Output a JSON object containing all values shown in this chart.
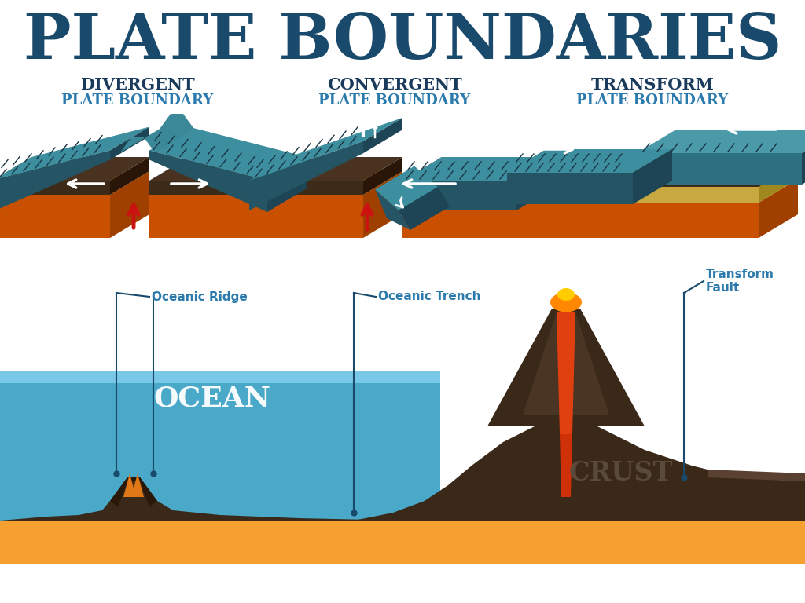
{
  "title": "PLATE BOUNDARIES",
  "title_color": "#1a4a6b",
  "title_fontsize": 58,
  "bg_color": "#ffffff",
  "subtitle1_line1": "DIVERGENT",
  "subtitle1_line2": "PLATE BOUNDARY",
  "subtitle2_line1": "CONVERGENT",
  "subtitle2_line2": "PLATE BOUNDARY",
  "subtitle3_line1": "TRANSFORM",
  "subtitle3_line2": "PLATE BOUNDARY",
  "subtitle_color_line1": "#1a3a5c",
  "subtitle_color_line2": "#2a7aad",
  "label_oceanic_ridge": "Oceanic Ridge",
  "label_oceanic_trench": "Oceanic Trench",
  "label_transform_fault": "Transform\nFault",
  "label_ocean": "OCEAN",
  "label_crust": "CRUST",
  "label_color": "#2a7aad",
  "teal_dark": "#2d6e7e",
  "teal_top": "#3d8e9e",
  "brown_dark": "#3d2b1a",
  "brown_mid": "#4a3220",
  "orange_dark": "#c85000",
  "orange_mid": "#e07818",
  "orange_light": "#f5a030",
  "ocean_blue_dark": "#4aa8c8",
  "ocean_blue_light": "#7ac8e8",
  "cream": "#f0d070",
  "cream_dark": "#c8a840"
}
